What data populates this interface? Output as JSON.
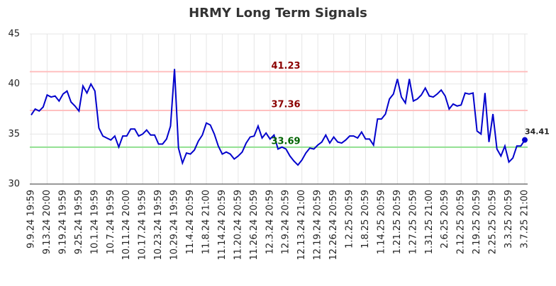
{
  "chart_data": {
    "type": "line",
    "title": "HRMY Long Term Signals",
    "categories": [
      "9.9.24 19:59",
      null,
      null,
      null,
      "9.13.24 20:00",
      null,
      null,
      null,
      "9.19.24 19:59",
      null,
      null,
      null,
      "9.25.24 19:59",
      null,
      null,
      null,
      "10.1.24 19:59",
      null,
      null,
      null,
      "10.7.24 19:59",
      null,
      null,
      null,
      "10.11.24 20:00",
      null,
      null,
      null,
      "10.17.24 19:59",
      null,
      null,
      null,
      "10.23.24 19:59",
      null,
      null,
      null,
      "10.29.24 19:59",
      null,
      null,
      null,
      "11.4.24 20:59",
      null,
      null,
      null,
      "11.8.24 21:00",
      null,
      null,
      null,
      "11.14.24 20:59",
      null,
      null,
      null,
      "11.20.24 20:59",
      null,
      null,
      null,
      "11.26.24 20:59",
      null,
      null,
      null,
      "12.3.24 20:59",
      null,
      null,
      null,
      "12.9.24 20:59",
      null,
      null,
      null,
      "12.13.24 21:00",
      null,
      null,
      null,
      "12.19.24 20:59",
      null,
      null,
      null,
      "12.26.24 20:59",
      null,
      null,
      null,
      "1.2.25 20:59",
      null,
      null,
      null,
      "1.8.25 20:59",
      null,
      null,
      null,
      "1.14.25 20:59",
      null,
      null,
      null,
      "1.21.25 20:59",
      null,
      null,
      null,
      "1.27.25 20:59",
      null,
      null,
      null,
      "1.31.25 21:00",
      null,
      null,
      null,
      "2.6.25 20:59",
      null,
      null,
      null,
      "2.12.25 20:59",
      null,
      null,
      null,
      "2.19.25 20:59",
      null,
      null,
      null,
      "2.25.25 20:59",
      null,
      null,
      null,
      "3.3.25 20:59",
      null,
      null,
      null,
      "3.7.25 21:00"
    ],
    "values": [
      36.9,
      37.5,
      37.3,
      37.7,
      38.9,
      38.7,
      38.8,
      38.3,
      39.0,
      39.3,
      38.2,
      37.8,
      37.3,
      39.8,
      39.1,
      40.0,
      39.3,
      35.6,
      34.8,
      34.6,
      34.4,
      34.8,
      33.7,
      34.8,
      34.8,
      35.5,
      35.5,
      34.8,
      35.0,
      35.4,
      34.9,
      34.9,
      34.0,
      34.0,
      34.5,
      35.8,
      41.5,
      33.6,
      32.1,
      33.1,
      33.0,
      33.4,
      34.3,
      34.9,
      36.1,
      35.9,
      35.0,
      33.8,
      33.0,
      33.2,
      33.0,
      32.5,
      32.8,
      33.2,
      34.1,
      34.7,
      34.8,
      35.8,
      34.6,
      35.1,
      34.5,
      34.9,
      33.5,
      33.7,
      33.5,
      32.8,
      32.3,
      31.9,
      32.4,
      33.1,
      33.6,
      33.5,
      33.9,
      34.2,
      34.9,
      34.1,
      34.7,
      34.2,
      34.1,
      34.4,
      34.8,
      34.8,
      34.6,
      35.2,
      34.5,
      34.5,
      33.9,
      36.5,
      36.5,
      37.0,
      38.5,
      39.0,
      40.5,
      38.7,
      38.1,
      40.5,
      38.3,
      38.5,
      38.9,
      39.6,
      38.8,
      38.7,
      39.0,
      39.4,
      38.8,
      37.5,
      38.0,
      37.8,
      37.9,
      39.1,
      39.0,
      39.1,
      35.3,
      35.0,
      39.1,
      34.2,
      37.0,
      33.5,
      32.8,
      33.8,
      32.2,
      32.6,
      33.8,
      33.8,
      34.41
    ],
    "color": "#0000cc",
    "ylim": [
      30,
      45
    ],
    "yticks": [
      30,
      35,
      40,
      45
    ],
    "grid": true,
    "annotations": [
      {
        "value": 41.23,
        "color": "#8b0000",
        "line_color": "#ffc0c0"
      },
      {
        "value": 37.36,
        "color": "#8b0000",
        "line_color": "#ffc0c0"
      },
      {
        "value": 33.69,
        "color": "#006400",
        "line_color": "#90e090"
      }
    ]
  }
}
